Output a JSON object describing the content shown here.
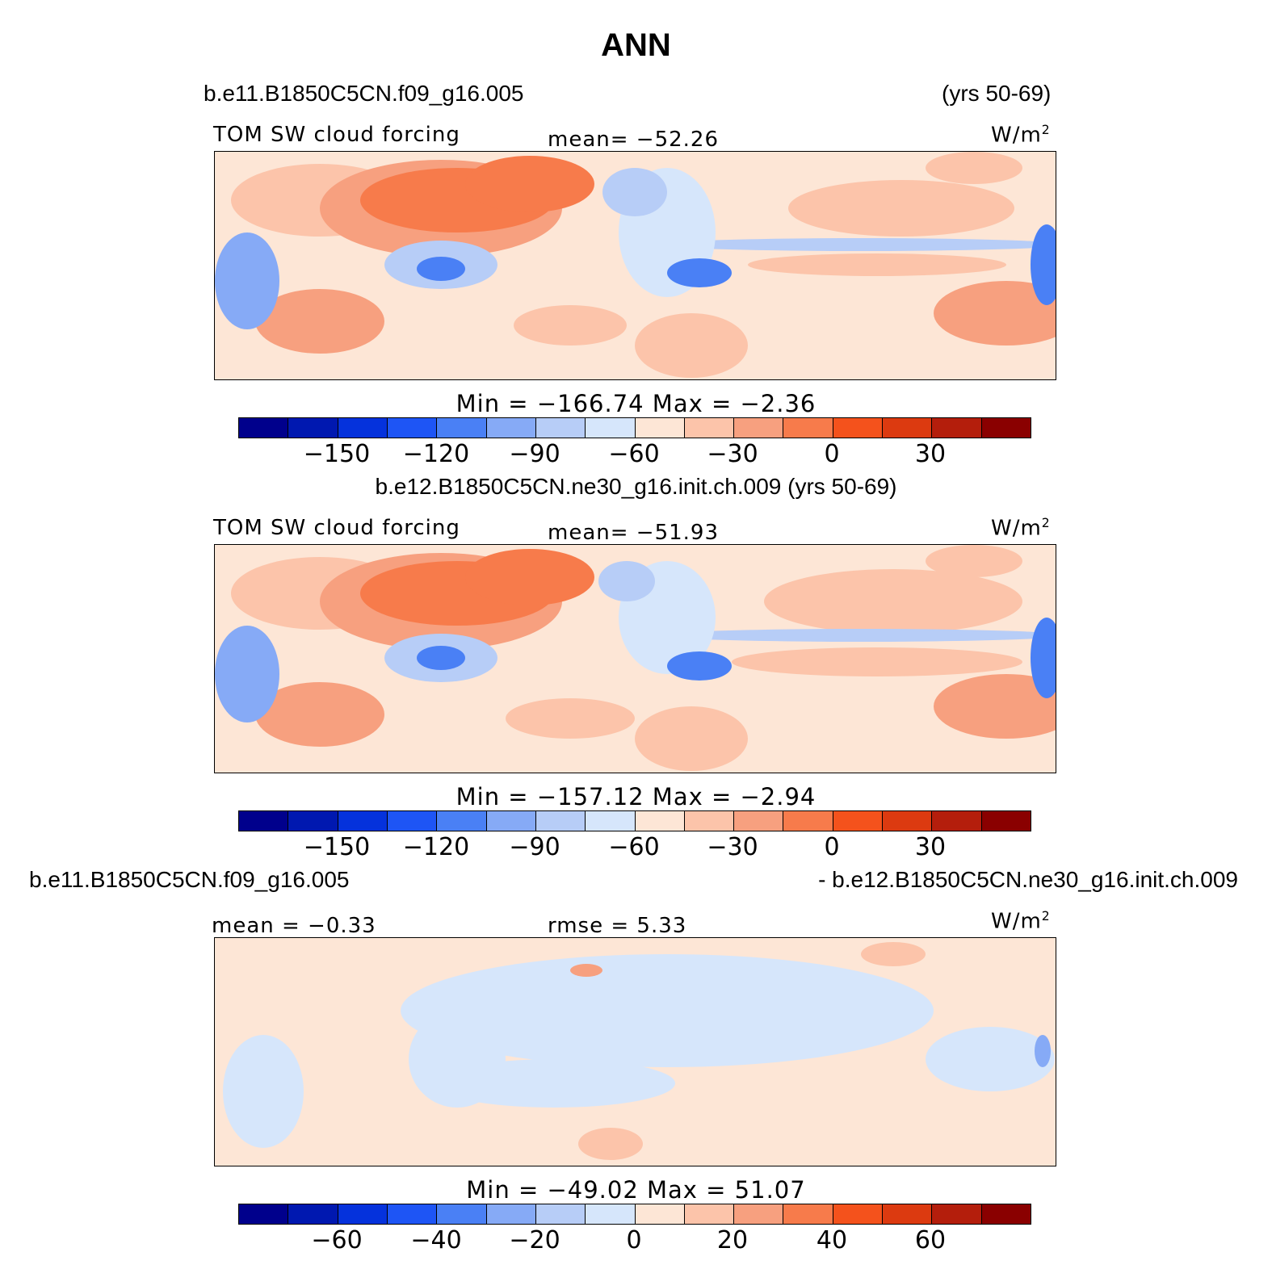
{
  "title": "ANN",
  "colors": [
    "#00008c",
    "#0018b0",
    "#0532dc",
    "#1e55f5",
    "#4a80f5",
    "#86aaf6",
    "#b7cdf7",
    "#d6e6fb",
    "#fde6d6",
    "#fcc4aa",
    "#f7a07f",
    "#f77b4b",
    "#f4521c",
    "#dc3a10",
    "#b41e0c",
    "#8a0000"
  ],
  "land_color": "none",
  "panels": [
    {
      "case": "b.e11.B1850C5CN.f09_g16.005",
      "years": "(yrs 50-69)",
      "var_label": "TOM  SW  cloud  forcing",
      "mean_label": "mean=  −52.26",
      "units": "W/m",
      "units_sup": "2",
      "minmax": "Min  =  −166.74  Max  =   −2.36",
      "ticks": [
        "−150",
        "−120",
        "−90",
        "−60",
        "−30",
        "0",
        "30"
      ]
    },
    {
      "case": "b.e12.B1850C5CN.ne30_g16.init.ch.009 (yrs 50-69)",
      "var_label": "TOM  SW  cloud  forcing",
      "mean_label": "mean=  −51.93",
      "units": "W/m",
      "units_sup": "2",
      "minmax": "Min  =  −157.12  Max  =   −2.94",
      "ticks": [
        "−150",
        "−120",
        "−90",
        "−60",
        "−30",
        "0",
        "30"
      ]
    },
    {
      "case_left": "b.e11.B1850C5CN.f09_g16.005",
      "case_right": "- b.e12.B1850C5CN.ne30_g16.init.ch.009",
      "mean_label": "mean  =   −0.33",
      "rmse_label": "rmse  =    5.33",
      "units": "W/m",
      "units_sup": "2",
      "minmax": "Min  =  −49.02  Max  =    51.07",
      "ticks": [
        "−60",
        "−40",
        "−20",
        "0",
        "20",
        "40",
        "60"
      ]
    }
  ]
}
